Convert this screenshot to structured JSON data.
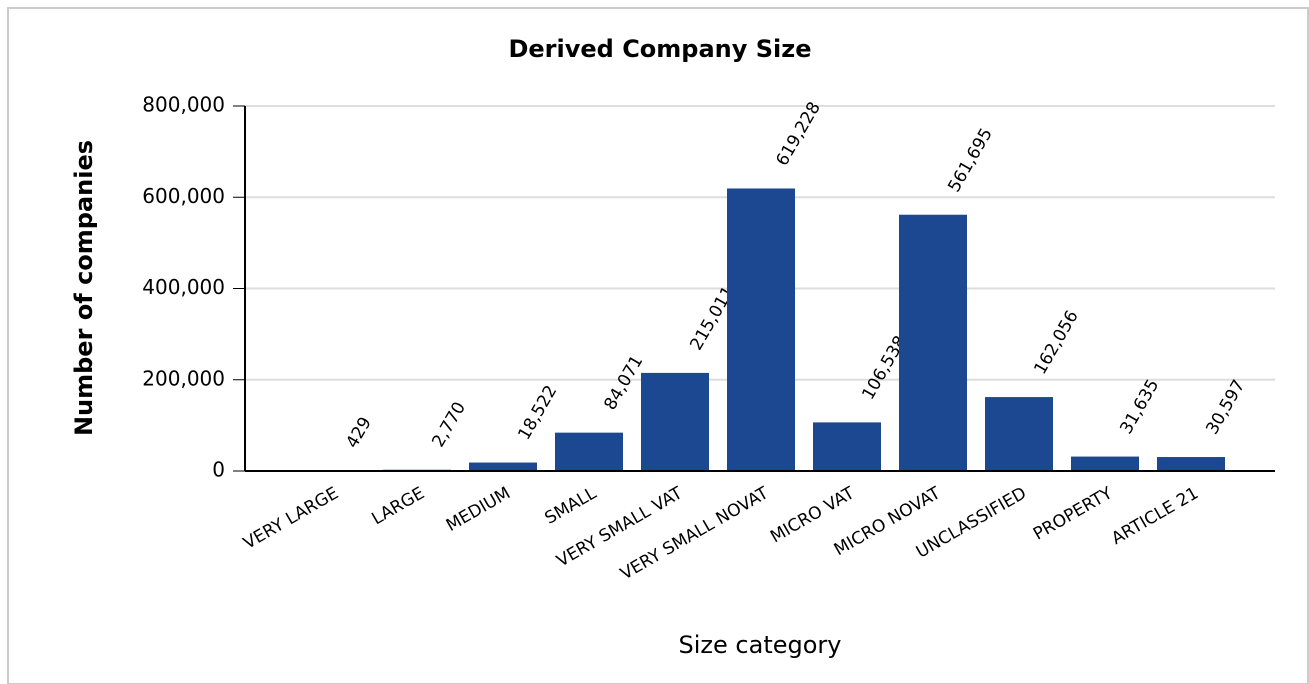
{
  "chart_data": {
    "type": "bar",
    "title": "Derived Company Size",
    "x_label": "Size category",
    "y_label": "Number of companies",
    "categories": [
      "VERY LARGE",
      "LARGE",
      "MEDIUM",
      "SMALL",
      "VERY SMALL VAT",
      "VERY SMALL NOVAT",
      "MICRO VAT",
      "MICRO NOVAT",
      "UNCLASSIFIED",
      "PROPERTY",
      "ARTICLE 21"
    ],
    "values": [
      429,
      2770,
      18522,
      84071,
      215011,
      619228,
      106538,
      561695,
      162056,
      31635,
      30597
    ],
    "value_labels": [
      "429",
      "2,770",
      "18,522",
      "84,071",
      "215,011",
      "619,228",
      "106,538",
      "561,695",
      "162,056",
      "31,635",
      "30,597"
    ],
    "color": "#1c4891",
    "ylim": [
      0,
      800000
    ],
    "yticks": [
      0,
      {
        "value": 200000,
        "label": "200,000"
      },
      {
        "value": 400000,
        "label": "400,000"
      },
      {
        "value": 600000,
        "label": "600,000"
      },
      {
        "value": 800000,
        "label": "800,000"
      }
    ],
    "grid": true
  }
}
